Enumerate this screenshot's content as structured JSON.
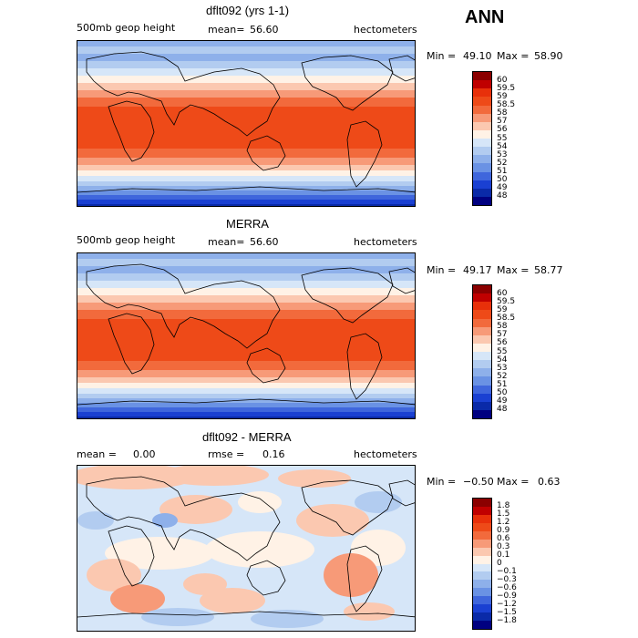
{
  "chart_data": [
    {
      "type": "heatmap",
      "title": "dflt092 (yrs 1-1)",
      "field": "500mb geop height",
      "stat_label": "mean=",
      "stat_value": "56.60",
      "units": "hectometers",
      "min_label": "Min =",
      "min": "49.10",
      "max_label": "Max =",
      "max": "58.90",
      "colorbar": [
        "60",
        "59.5",
        "59",
        "58.5",
        "58",
        "57",
        "56",
        "55",
        "54",
        "53",
        "52",
        "51",
        "50",
        "49",
        "48"
      ]
    },
    {
      "type": "heatmap",
      "title": "MERRA",
      "field": "500mb geop height",
      "stat_label": "mean=",
      "stat_value": "56.60",
      "units": "hectometers",
      "min_label": "Min =",
      "min": "49.17",
      "max_label": "Max =",
      "max": "58.77",
      "colorbar": [
        "60",
        "59.5",
        "59",
        "58.5",
        "58",
        "57",
        "56",
        "55",
        "54",
        "53",
        "52",
        "51",
        "50",
        "49",
        "48"
      ]
    },
    {
      "type": "heatmap",
      "title": "dflt092 - MERRA",
      "mean_label": "mean =",
      "mean_value": "0.00",
      "rmse_label": "rmse =",
      "rmse_value": "0.16",
      "units": "hectometers",
      "min_label": "Min =",
      "min": "−0.50",
      "max_label": "Max =",
      "max": "0.63",
      "colorbar": [
        "1.8",
        "1.5",
        "1.2",
        "0.9",
        "0.6",
        "0.3",
        "0.1",
        "0",
        "−0.1",
        "−0.3",
        "−0.6",
        "−0.9",
        "−1.2",
        "−1.5",
        "−1.8"
      ]
    }
  ],
  "season": "ANN",
  "colors": {
    "scale": [
      "#8b0000",
      "#c00000",
      "#e8300a",
      "#ee4a18",
      "#f26a3c",
      "#f79a78",
      "#fbc8b0",
      "#fff2e6",
      "#d6e6f8",
      "#b2ccf0",
      "#8eb0ea",
      "#6a92e4",
      "#3f66dc",
      "#1a40d2",
      "#0a2aa8",
      "#000080"
    ]
  }
}
